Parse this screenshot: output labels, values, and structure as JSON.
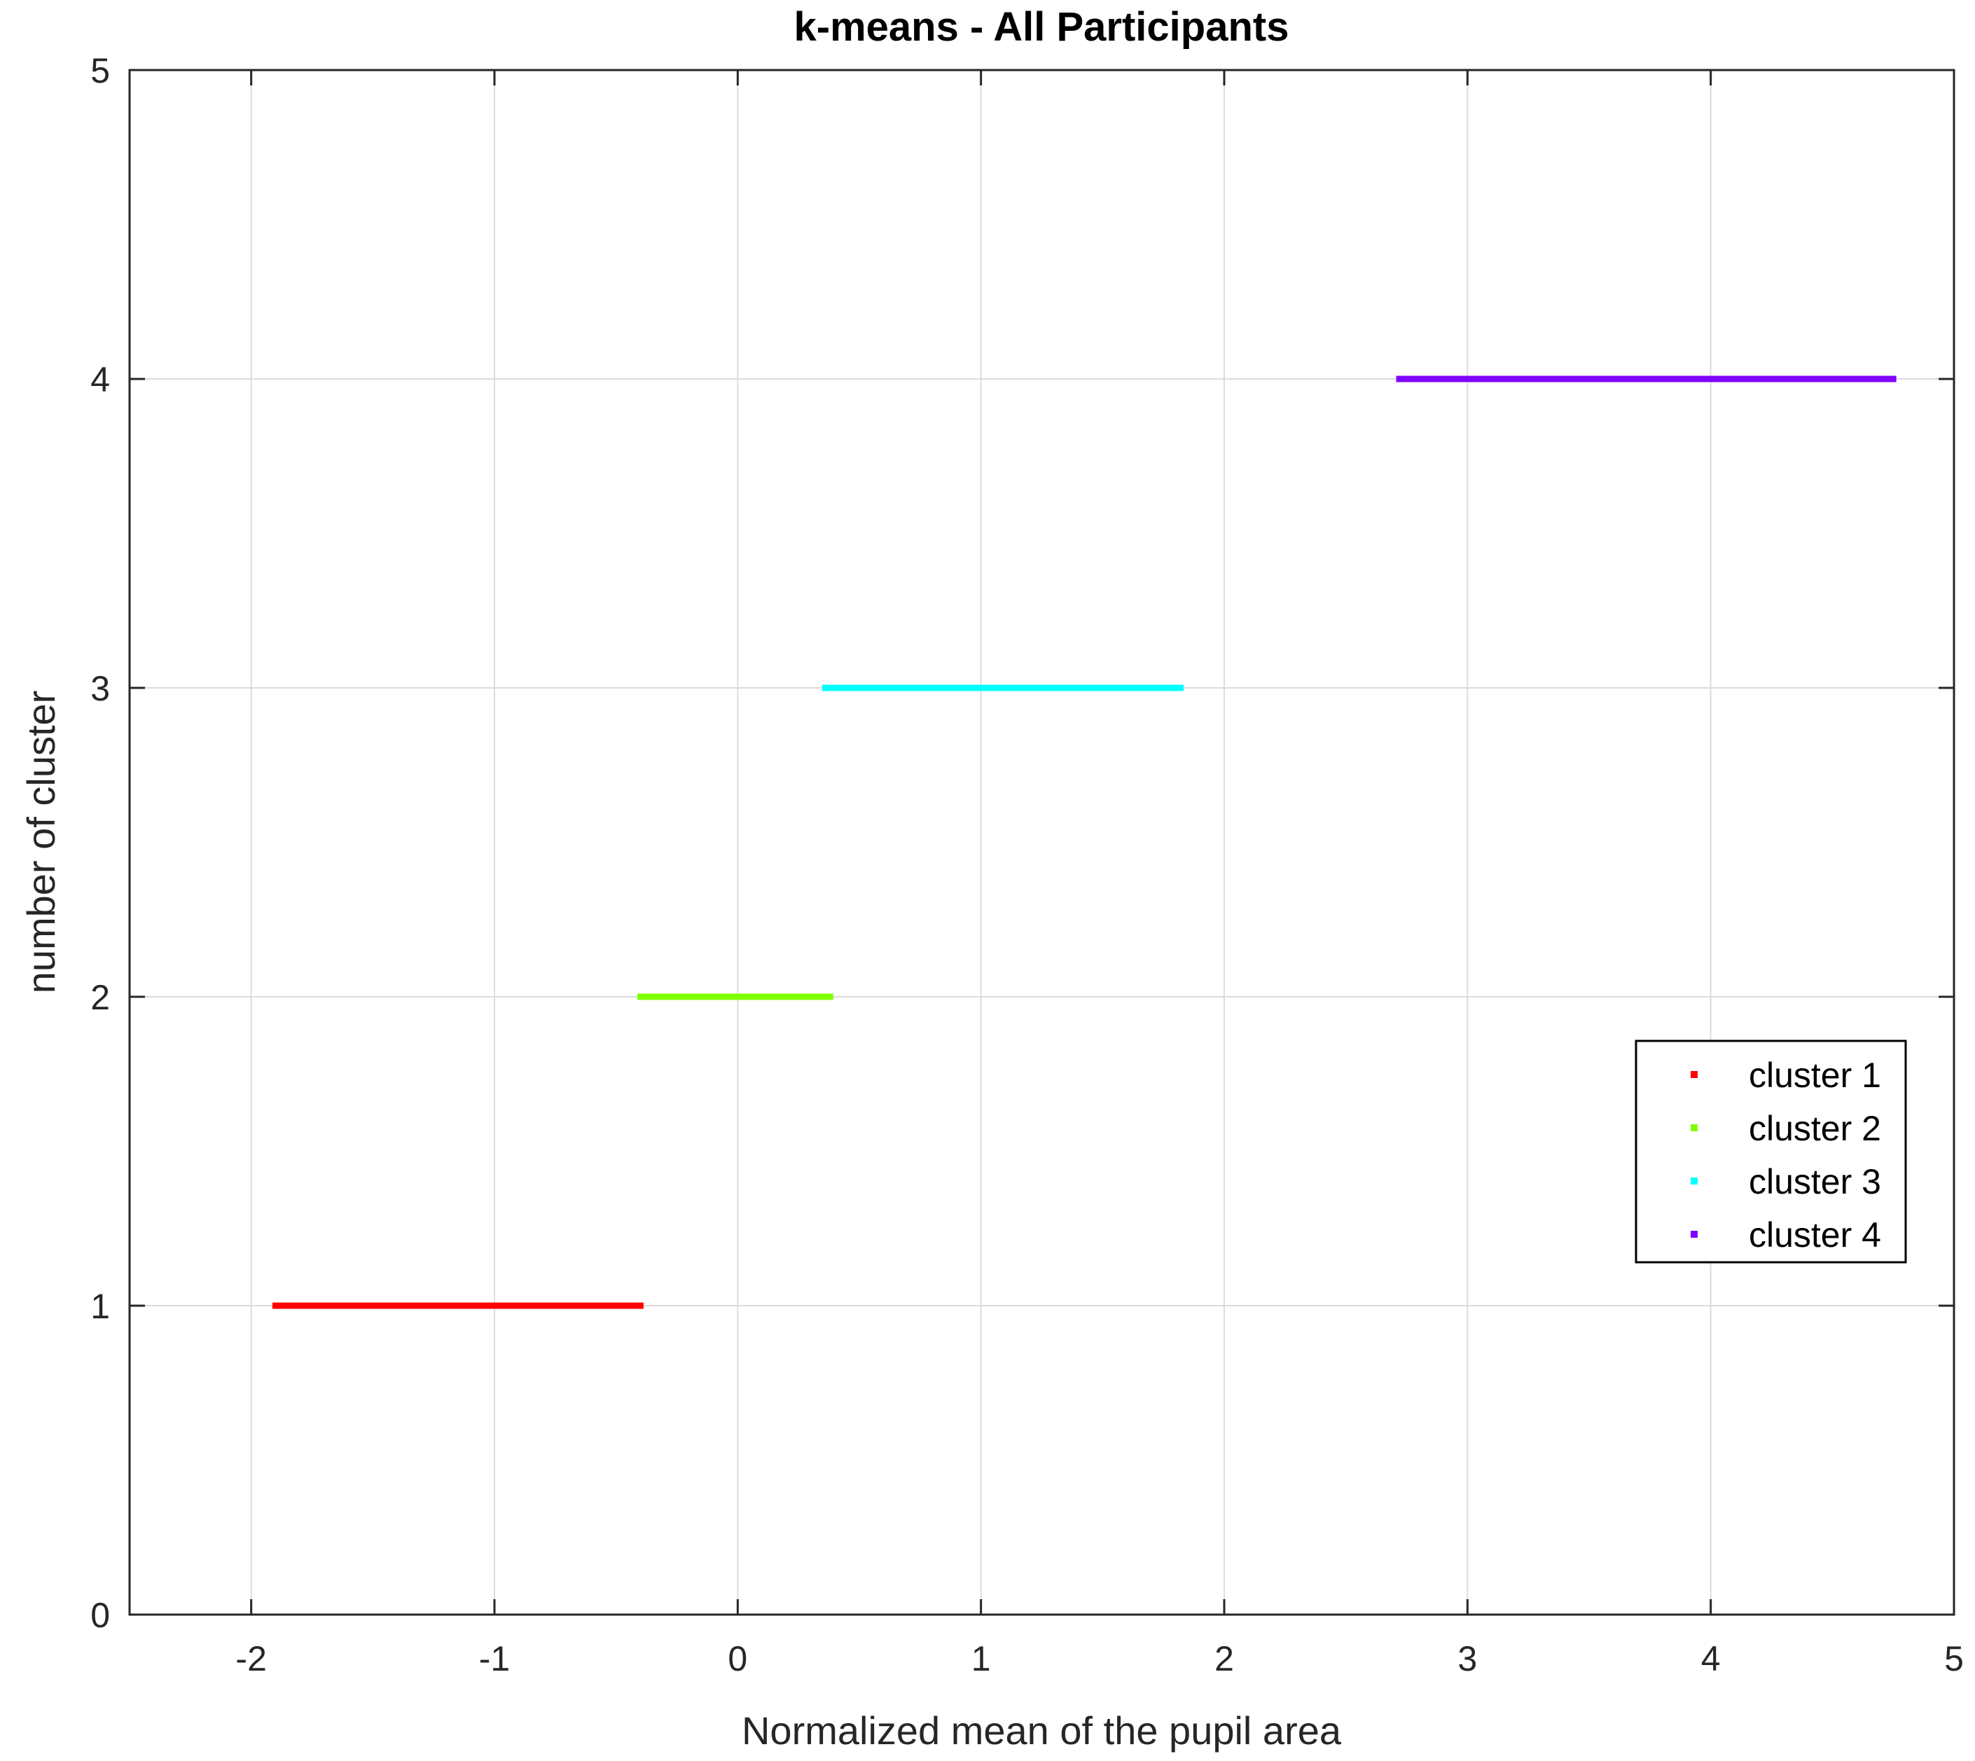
{
  "chart_data": {
    "type": "scatter",
    "title": "k-means - All Participants",
    "xlabel": "Normalized mean of the pupil area",
    "ylabel": "number of cluster",
    "xlim": [
      -2.5,
      5
    ],
    "ylim": [
      0,
      5
    ],
    "xticks": [
      -2,
      -1,
      0,
      1,
      2,
      3,
      4,
      5
    ],
    "yticks": [
      0,
      1,
      2,
      3,
      4,
      5
    ],
    "grid": true,
    "legend_position": "right",
    "series": [
      {
        "name": "cluster 1",
        "color": "#ff0000",
        "y": 1,
        "x": [
          -1.9,
          -1.87,
          -1.84,
          -1.8,
          -1.76,
          -1.72,
          -1.68,
          -1.64,
          -1.6,
          -1.56,
          -1.52,
          -1.48,
          -1.44,
          -1.4,
          -1.36,
          -1.32,
          -1.28,
          -1.24,
          -1.2,
          -1.16,
          -1.12,
          -1.08,
          -1.04,
          -1.0,
          -0.96,
          -0.92,
          -0.88,
          -0.84,
          -0.8,
          -0.76,
          -0.72,
          -0.68,
          -0.64,
          -0.6,
          -0.56,
          -0.52,
          -0.48,
          -0.44,
          -0.4
        ]
      },
      {
        "name": "cluster 2",
        "color": "#80ff00",
        "y": 2,
        "x": [
          -0.4,
          -0.36,
          -0.32,
          -0.28,
          -0.24,
          -0.2,
          -0.16,
          -0.12,
          -0.08,
          -0.04,
          0.0,
          0.04,
          0.08,
          0.12,
          0.16,
          0.2,
          0.24,
          0.28,
          0.32,
          0.36,
          0.38
        ]
      },
      {
        "name": "cluster 3",
        "color": "#00ffff",
        "y": 3,
        "x": [
          0.36,
          0.4,
          0.44,
          0.48,
          0.52,
          0.56,
          0.6,
          0.64,
          0.68,
          0.72,
          0.76,
          0.8,
          0.84,
          0.88,
          0.92,
          0.96,
          1.0,
          1.04,
          1.08,
          1.12,
          1.16,
          1.2,
          1.24,
          1.28,
          1.32,
          1.36,
          1.4,
          1.44,
          1.48,
          1.52,
          1.56,
          1.6,
          1.64,
          1.68,
          1.72,
          1.82
        ]
      },
      {
        "name": "cluster 4",
        "color": "#8000ff",
        "y": 4,
        "x": [
          2.72,
          2.76,
          2.8,
          2.84,
          2.88,
          2.92,
          2.96,
          3.0,
          3.04,
          3.08,
          3.12,
          3.16,
          3.2,
          3.24,
          3.28,
          3.32,
          3.36,
          3.4,
          3.44,
          3.48,
          3.52,
          3.56,
          3.6,
          3.64,
          3.68,
          3.72,
          3.76,
          3.8,
          3.84,
          3.88,
          3.92,
          3.96,
          4.0,
          4.04,
          4.08,
          4.14,
          4.2,
          4.26,
          4.32,
          4.4,
          4.48,
          4.56,
          4.75
        ]
      }
    ]
  }
}
